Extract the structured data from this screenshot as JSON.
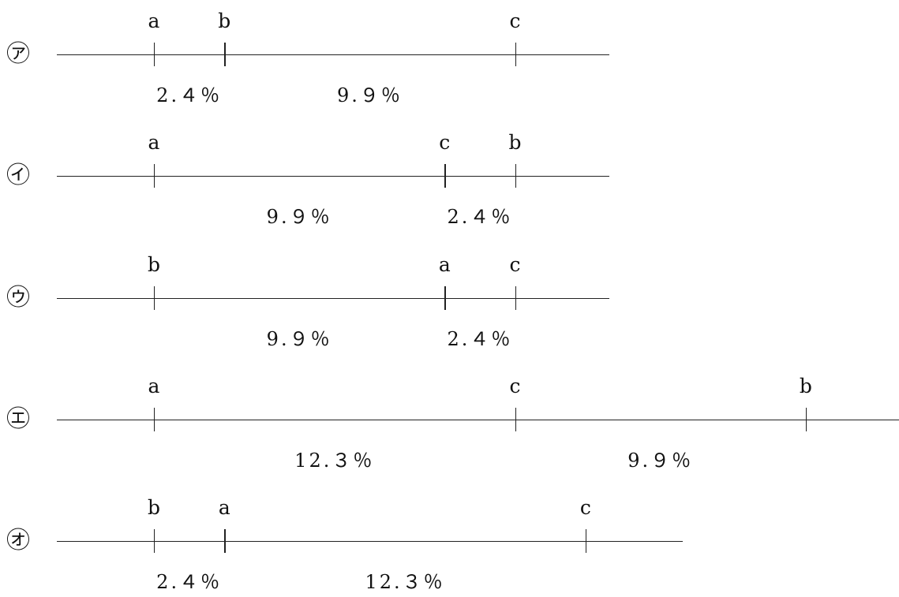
{
  "rows": [
    {
      "marker": "㋐",
      "points": [
        {
          "label": "a",
          "pos": 0
        },
        {
          "label": "b",
          "pos": 2.4
        },
        {
          "label": "c",
          "pos": 12.3
        }
      ],
      "segments": [
        {
          "text": "2.４％",
          "from": 0,
          "to": 2.4
        },
        {
          "text": "9.９％",
          "from": 2.4,
          "to": 12.3
        }
      ],
      "line_end": 15.5
    },
    {
      "marker": "㋑",
      "points": [
        {
          "label": "a",
          "pos": 0
        },
        {
          "label": "c",
          "pos": 9.9
        },
        {
          "label": "b",
          "pos": 12.3
        }
      ],
      "segments": [
        {
          "text": "9.９％",
          "from": 0,
          "to": 9.9
        },
        {
          "text": "2.４％",
          "from": 9.9,
          "to": 12.3
        }
      ],
      "line_end": 15.5
    },
    {
      "marker": "㋒",
      "points": [
        {
          "label": "b",
          "pos": 0
        },
        {
          "label": "a",
          "pos": 9.9
        },
        {
          "label": "c",
          "pos": 12.3
        }
      ],
      "segments": [
        {
          "text": "9.９％",
          "from": 0,
          "to": 9.9
        },
        {
          "text": "2.４％",
          "from": 9.9,
          "to": 12.3
        }
      ],
      "line_end": 15.5
    },
    {
      "marker": "㋓",
      "points": [
        {
          "label": "a",
          "pos": 0
        },
        {
          "label": "c",
          "pos": 12.3
        },
        {
          "label": "b",
          "pos": 22.2
        }
      ],
      "segments": [
        {
          "text": "12.３％",
          "from": 0,
          "to": 12.3
        },
        {
          "text": "9.９％",
          "from": 12.3,
          "to": 22.2
        }
      ],
      "line_end": 25.4
    },
    {
      "marker": "㋔",
      "points": [
        {
          "label": "b",
          "pos": 0
        },
        {
          "label": "a",
          "pos": 2.4
        },
        {
          "label": "c",
          "pos": 14.7
        }
      ],
      "segments": [
        {
          "text": "2.４％",
          "from": 0,
          "to": 2.4
        },
        {
          "text": "12.３％",
          "from": 2.4,
          "to": 14.7
        }
      ],
      "line_end": 18.0
    }
  ]
}
